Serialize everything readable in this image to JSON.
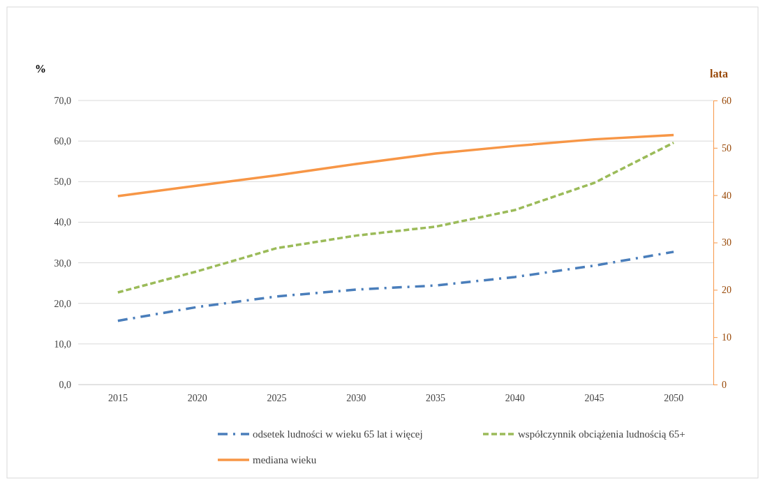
{
  "chart_data": {
    "type": "line",
    "ylabel": "%",
    "y2label": "lata",
    "categories": [
      "2015",
      "2020",
      "2025",
      "2030",
      "2035",
      "2040",
      "2045",
      "2050"
    ],
    "series": [
      {
        "name": "odsetek ludności w wieku 65 lat i więcej",
        "color": "#4a7ebb",
        "line_style": "dashdot",
        "values": [
          15.7,
          19.1,
          21.7,
          23.4,
          24.4,
          26.5,
          29.3,
          32.7
        ]
      },
      {
        "name": "współczynnik obciążenia ludnością 65+",
        "color": "#9bbb59",
        "line_style": "dashed",
        "values": [
          22.7,
          27.9,
          33.6,
          36.7,
          38.9,
          43.0,
          49.7,
          59.6
        ]
      },
      {
        "name": "mediana wieku",
        "color": "#f79646",
        "line_style": "solid",
        "axis": "y2",
        "values": [
          39.8,
          42.0,
          44.2,
          46.6,
          48.8,
          50.4,
          51.8,
          52.7
        ]
      }
    ],
    "ylim": [
      0,
      70
    ],
    "yticks": [
      {
        "value": 0,
        "label": "0,0"
      },
      {
        "value": 10,
        "label": "10,0"
      },
      {
        "value": 20,
        "label": "20,0"
      },
      {
        "value": 30,
        "label": "30,0"
      },
      {
        "value": 40,
        "label": "40,0"
      },
      {
        "value": 50,
        "label": "50,0"
      },
      {
        "value": 60,
        "label": "60,0"
      },
      {
        "value": 70,
        "label": "70,0"
      }
    ],
    "y2lim": [
      0,
      60
    ],
    "y2ticks": [
      0,
      10,
      20,
      30,
      40,
      50,
      60
    ],
    "grid": "y",
    "legend": "bottom",
    "marker": "none"
  }
}
